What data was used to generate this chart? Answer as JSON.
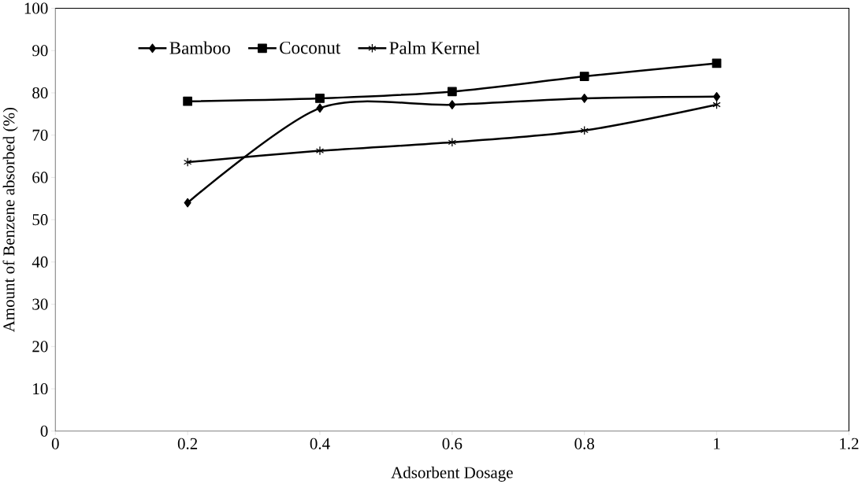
{
  "chart_data": {
    "type": "line",
    "xlabel": "Adsorbent Dosage",
    "ylabel": "Amount of Benzene absorbed (%)",
    "x": [
      0.2,
      0.4,
      0.6,
      0.8,
      1
    ],
    "series": [
      {
        "name": "Bamboo",
        "color": "#000000",
        "marker": "diamond",
        "values": [
          54,
          76.4,
          77.2,
          78.7,
          79.1
        ]
      },
      {
        "name": "Coconut",
        "color": "#000000",
        "marker": "square",
        "values": [
          78,
          78.7,
          80.3,
          83.9,
          87
        ]
      },
      {
        "name": "Palm Kernel",
        "color": "#000000",
        "marker": "cross",
        "values": [
          63.6,
          66.3,
          68.3,
          71.1,
          77.2
        ]
      }
    ],
    "xlim": [
      0,
      1.2
    ],
    "xticks": [
      0,
      0.2,
      0.4,
      0.6,
      0.8,
      1,
      1.2
    ],
    "ylim": [
      0,
      100
    ],
    "yticks": [
      0,
      10,
      20,
      30,
      40,
      50,
      60,
      70,
      80,
      90,
      100
    ],
    "grid": false,
    "legend": "top",
    "line_style": "solid"
  }
}
